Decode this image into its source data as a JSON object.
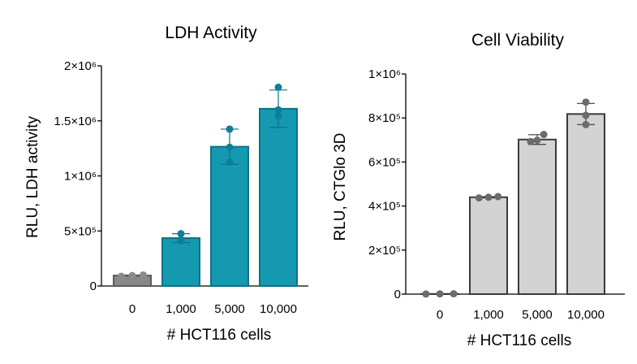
{
  "chart_data": [
    {
      "type": "bar",
      "title": "LDH Activity",
      "xlabel": "# HCT116 cells",
      "ylabel": "RLU, LDH activity",
      "categories": [
        "0",
        "1,000",
        "5,000",
        "10,000"
      ],
      "values": [
        95000,
        435000,
        1265000,
        1610000
      ],
      "errors": [
        5000,
        40000,
        160000,
        170000
      ],
      "points": [
        [
          88000,
          95000,
          100000
        ],
        [
          410000,
          420000,
          475000
        ],
        [
          1125000,
          1260000,
          1425000
        ],
        [
          1545000,
          1600000,
          1805000
        ]
      ],
      "ylim": [
        0,
        2000000
      ],
      "yticks": [
        0,
        500000,
        1000000,
        1500000,
        2000000
      ],
      "ytick_labels": [
        "0",
        "5×10⁵",
        "1×10⁶",
        "1.5×10⁶",
        "2×10⁶"
      ],
      "colors": [
        "#888888",
        "#1499b1",
        "#1499b1",
        "#1499b1"
      ],
      "point_colors": [
        "#8a8a8a",
        "#0d7f96",
        "#0d7f96",
        "#0d7f96"
      ],
      "bar_edge_colors": [
        "#5a5a5a",
        "#0e7187",
        "#0e7187",
        "#0e7187"
      ]
    },
    {
      "type": "bar",
      "title": "Cell Viability",
      "xlabel": "# HCT116 cells",
      "ylabel": "RLU, CTGlo 3D",
      "categories": [
        "0",
        "1,000",
        "5,000",
        "10,000"
      ],
      "values": [
        1000,
        440000,
        702000,
        818000
      ],
      "errors": [
        500,
        3000,
        22000,
        48000
      ],
      "points": [
        [
          500,
          1000,
          1500
        ],
        [
          437000,
          440000,
          443000
        ],
        [
          693000,
          699000,
          725000
        ],
        [
          770000,
          812000,
          872000
        ]
      ],
      "ylim": [
        0,
        1000000
      ],
      "yticks": [
        0,
        200000,
        400000,
        600000,
        800000,
        1000000
      ],
      "ytick_labels": [
        "0",
        "2×10⁵",
        "4×10⁵",
        "6×10⁵",
        "8×10⁵",
        "1×10⁶"
      ],
      "colors": [
        "#d3d3d3",
        "#d3d3d3",
        "#d3d3d3",
        "#d3d3d3"
      ],
      "point_colors": [
        "#6b6b6b",
        "#6b6b6b",
        "#6b6b6b",
        "#6b6b6b"
      ],
      "bar_edge_colors": [
        "#3a3a3a",
        "#3a3a3a",
        "#3a3a3a",
        "#3a3a3a"
      ]
    }
  ]
}
